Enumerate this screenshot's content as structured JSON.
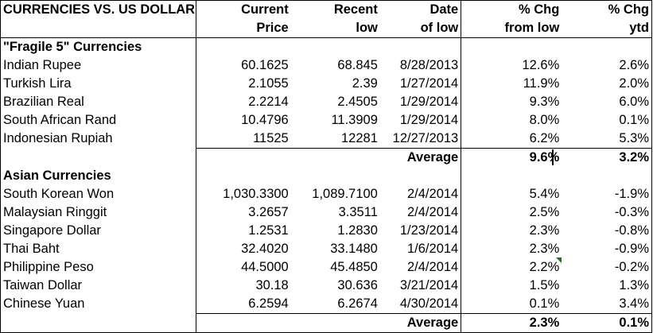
{
  "header": {
    "title": "CURRENCIES VS. US DOLLAR",
    "col1_line1": "Current",
    "col1_line2": "Price",
    "col2_line1": "Recent",
    "col2_line2": "low",
    "col3_line1": "Date",
    "col3_line2": "of low",
    "col4_line1": "% Chg",
    "col4_line2": "from low",
    "col5_line1": "% Chg",
    "col5_line2": "ytd"
  },
  "fragile": {
    "label": "\"Fragile 5\" Currencies",
    "rows": [
      {
        "name": "Indian Rupee",
        "price": "60.1625",
        "low": "68.845",
        "date": "8/28/2013",
        "chg_low": "12.6%",
        "chg_ytd": "2.6%"
      },
      {
        "name": "Turkish Lira",
        "price": "2.1055",
        "low": "2.39",
        "date": "1/27/2014",
        "chg_low": "11.9%",
        "chg_ytd": "2.0%"
      },
      {
        "name": "Brazilian Real",
        "price": "2.2214",
        "low": "2.4505",
        "date": "1/29/2014",
        "chg_low": "9.3%",
        "chg_ytd": "6.0%"
      },
      {
        "name": "South African Rand",
        "price": "10.4796",
        "low": "11.3909",
        "date": "1/29/2014",
        "chg_low": "8.0%",
        "chg_ytd": "0.1%"
      },
      {
        "name": "Indonesian Rupiah",
        "price": "11525",
        "low": "12281",
        "date": "12/27/2013",
        "chg_low": "6.2%",
        "chg_ytd": "5.3%"
      }
    ],
    "average_label": "Average",
    "average_chg_low": "9.6%",
    "average_chg_ytd": "3.2%"
  },
  "asian": {
    "label": "Asian Currencies",
    "rows": [
      {
        "name": "South Korean Won",
        "price": "1,030.3300",
        "low": "1,089.7100",
        "date": "2/4/2014",
        "chg_low": "5.4%",
        "chg_ytd": "-1.9%"
      },
      {
        "name": "Malaysian Ringgit",
        "price": "3.2657",
        "low": "3.3511",
        "date": "2/4/2014",
        "chg_low": "2.5%",
        "chg_ytd": "-0.3%"
      },
      {
        "name": "Singapore Dollar",
        "price": "1.2531",
        "low": "1.2830",
        "date": "1/23/2014",
        "chg_low": "2.3%",
        "chg_ytd": "-0.8%"
      },
      {
        "name": "Thai Baht",
        "price": "32.4020",
        "low": "33.1480",
        "date": "1/6/2014",
        "chg_low": "2.3%",
        "chg_ytd": "-0.9%"
      },
      {
        "name": "Philippine Peso",
        "price": "44.5000",
        "low": "45.4850",
        "date": "2/4/2014",
        "chg_low": "2.2%",
        "chg_ytd": "-0.2%"
      },
      {
        "name": "Taiwan Dollar",
        "price": "30.18",
        "low": "30.636",
        "date": "3/21/2014",
        "chg_low": "1.5%",
        "chg_ytd": "1.3%"
      },
      {
        "name": "Chinese Yuan",
        "price": "6.2594",
        "low": "6.2674",
        "date": "4/30/2014",
        "chg_low": "0.1%",
        "chg_ytd": "3.4%"
      }
    ],
    "average_label": "Average",
    "average_chg_low": "2.3%",
    "average_chg_ytd": "0.1%"
  },
  "colors": {
    "note_indicator": "#1a7a1a",
    "grid": "#000000"
  }
}
